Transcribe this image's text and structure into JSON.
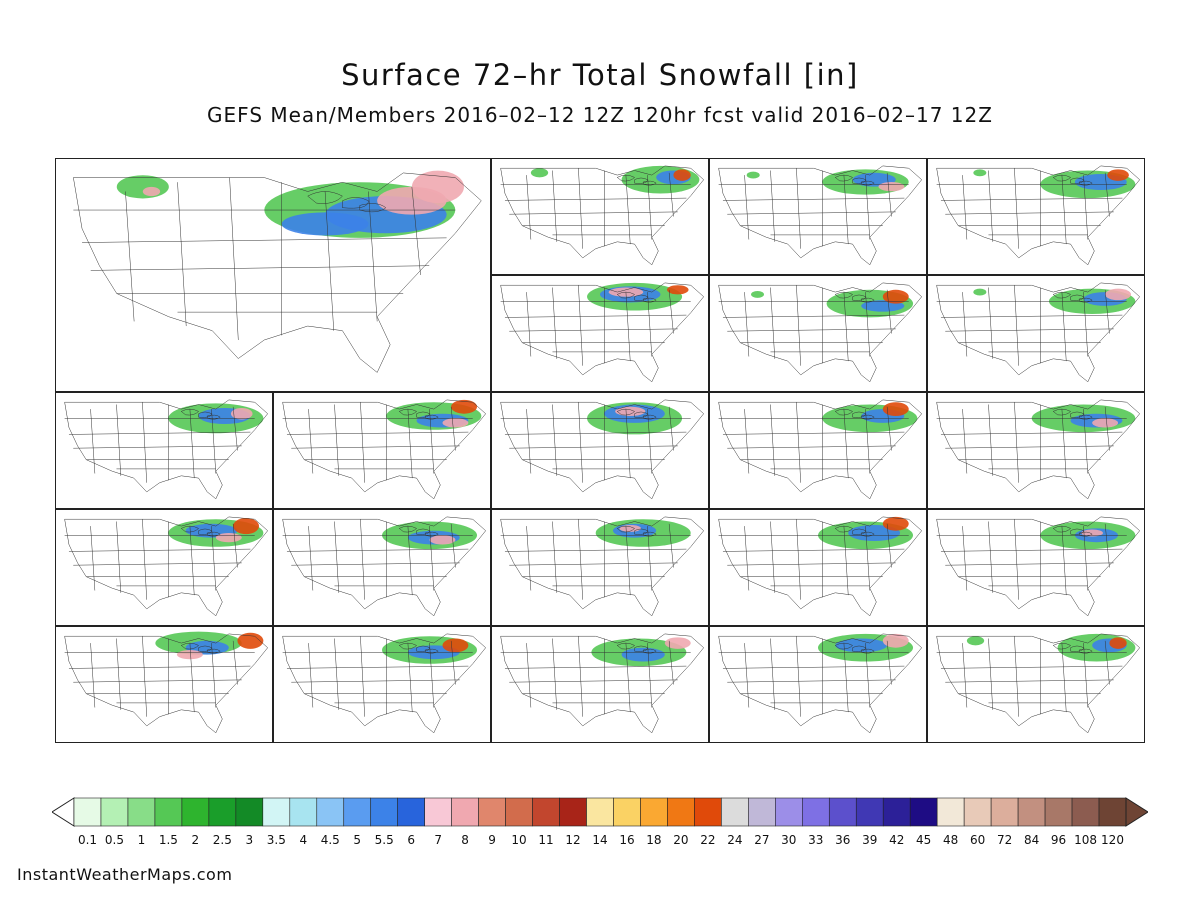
{
  "title": "Surface 72–hr Total Snowfall [in]",
  "subtitle": "GEFS Mean/Members 2016–02–12 12Z 120hr fcst valid 2016–02–17 12Z",
  "credit": "InstantWeatherMaps.com",
  "panels": {
    "mean": "GEFS Mean",
    "members": [
      "member-1",
      "member-2",
      "member-3",
      "member-4",
      "member-5",
      "member-6",
      "member-7",
      "member-8",
      "member-9",
      "member-10",
      "member-11",
      "member-12",
      "member-13",
      "member-14",
      "member-15",
      "member-16",
      "member-17",
      "member-18",
      "member-19",
      "member-20"
    ]
  },
  "legend": {
    "labels": [
      "0.1",
      "0.5",
      "1",
      "1.5",
      "2",
      "2.5",
      "3",
      "3.5",
      "4",
      "4.5",
      "5",
      "5.5",
      "6",
      "7",
      "8",
      "9",
      "10",
      "11",
      "12",
      "14",
      "16",
      "18",
      "20",
      "22",
      "24",
      "27",
      "30",
      "33",
      "36",
      "39",
      "42",
      "45",
      "48",
      "60",
      "72",
      "84",
      "96",
      "108",
      "120"
    ],
    "colors": [
      "#e6fae6",
      "#b4f0b4",
      "#88dd88",
      "#55c855",
      "#2eb42e",
      "#1a9e2a",
      "#138a26",
      "#d2f5f5",
      "#a8e4f0",
      "#8ac4f5",
      "#5a9cf0",
      "#3c82e8",
      "#2864dc",
      "#f8c8d6",
      "#f0a8b0",
      "#e0866c",
      "#d26c4c",
      "#c2462e",
      "#a82418",
      "#fae6a0",
      "#fad264",
      "#faa832",
      "#f07814",
      "#e04a0a",
      "#dcdcdc",
      "#c0b8d8",
      "#9c8ee8",
      "#7e70e4",
      "#5c50cc",
      "#4038b4",
      "#2c2098",
      "#1e0c84",
      "#f2e8d8",
      "#e8cab8",
      "#dcae9c",
      "#c29080",
      "#a87868",
      "#8c5c50",
      "#6e4434"
    ]
  },
  "colors": {
    "snow_light": "#55c855",
    "snow_medium": "#3c82e8",
    "snow_heavy": "#f0a8b0",
    "snow_extreme": "#e04a0a",
    "map_lines": "#333333"
  }
}
